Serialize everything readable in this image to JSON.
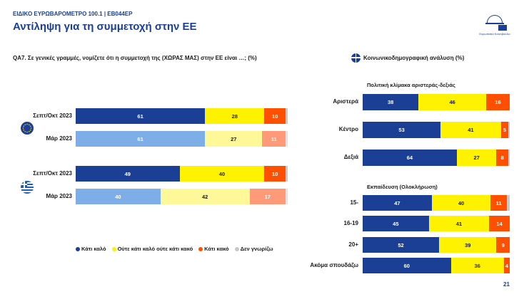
{
  "header": {
    "kicker": "ΕΙΔΙΚΟ ΕΥΡΩΒΑΡΟΜΕΤΡΟ 100.1 | EB044EP",
    "title": "Αντίληψη για τη συμμετοχή στην ΕΕ",
    "logo_text": "Ευρωπαϊκό Κοινοβούλιο"
  },
  "question": "QA7. Σε γενικές γραμμές, νομίζετε ότι η συμμετοχή της (ΧΩΡΑΣ ΜΑΣ) στην ΕΕ είναι …; (%)",
  "socio_title": "Κοινωνικοδημογραφική ανάλυση (%)",
  "page_number": "21",
  "colors": {
    "good": "#1b3f94",
    "neutral": "#fff200",
    "bad": "#ff4f00",
    "dk": "#c8c8c8",
    "good_prev": "#7eaee8",
    "neutral_prev": "#fff899",
    "bad_prev": "#ff9a78",
    "dk_prev": "#e3e3e3"
  },
  "legend": [
    {
      "label": "Κάτι καλό",
      "color": "#1b3f94"
    },
    {
      "label": "Ούτε κάτι καλό ούτε κάτι κακό",
      "color": "#fff200"
    },
    {
      "label": "Κάτι κακό",
      "color": "#ff4f00"
    },
    {
      "label": "Δεν γνωρίζω",
      "color": "#c8c8c8"
    }
  ],
  "chart_data": [
    {
      "type": "bar",
      "stacked": true,
      "orientation": "horizontal",
      "title": "",
      "categories": [
        "Σεπτ/Οκτ 2023",
        "Μάρ 2023",
        "Σεπτ/Οκτ 2023",
        "Μάρ 2023"
      ],
      "groups": [
        "EU",
        "EL"
      ],
      "series": [
        {
          "name": "Κάτι καλό",
          "values": [
            61,
            61,
            49,
            40
          ]
        },
        {
          "name": "Ούτε κάτι καλό ούτε κάτι κακό",
          "values": [
            28,
            27,
            40,
            42
          ]
        },
        {
          "name": "Κάτι κακό",
          "values": [
            10,
            11,
            10,
            17
          ]
        },
        {
          "name": "Δεν γνωρίζω",
          "values": [
            1,
            1,
            1,
            1
          ]
        }
      ],
      "xlim": [
        0,
        100
      ]
    },
    {
      "type": "bar",
      "stacked": true,
      "orientation": "horizontal",
      "title": "Πολιτική κλίμακα αριστεράς-δεξιάς",
      "categories": [
        "Αριστερά",
        "Κέντρο",
        "Δεξιά"
      ],
      "series": [
        {
          "name": "Κάτι καλό",
          "values": [
            38,
            53,
            64
          ]
        },
        {
          "name": "Ούτε κάτι καλό ούτε κάτι κακό",
          "values": [
            46,
            41,
            27
          ]
        },
        {
          "name": "Κάτι κακό",
          "values": [
            16,
            5,
            8
          ]
        },
        {
          "name": "Δεν γνωρίζω",
          "values": [
            0,
            1,
            1
          ]
        }
      ],
      "xlim": [
        0,
        100
      ]
    },
    {
      "type": "bar",
      "stacked": true,
      "orientation": "horizontal",
      "title": "Εκπαίδευση (Ολοκλήρωση)",
      "categories": [
        "15-",
        "16-19",
        "20+",
        "Ακόμα σπουδάζω"
      ],
      "series": [
        {
          "name": "Κάτι καλό",
          "values": [
            47,
            45,
            52,
            60
          ]
        },
        {
          "name": "Ούτε κάτι καλό ούτε κάτι κακό",
          "values": [
            40,
            41,
            39,
            36
          ]
        },
        {
          "name": "Κάτι κακό",
          "values": [
            11,
            14,
            9,
            4
          ]
        },
        {
          "name": "Δεν γνωρίζω",
          "values": [
            2,
            0,
            0,
            0
          ]
        }
      ],
      "xlim": [
        0,
        100
      ]
    }
  ]
}
